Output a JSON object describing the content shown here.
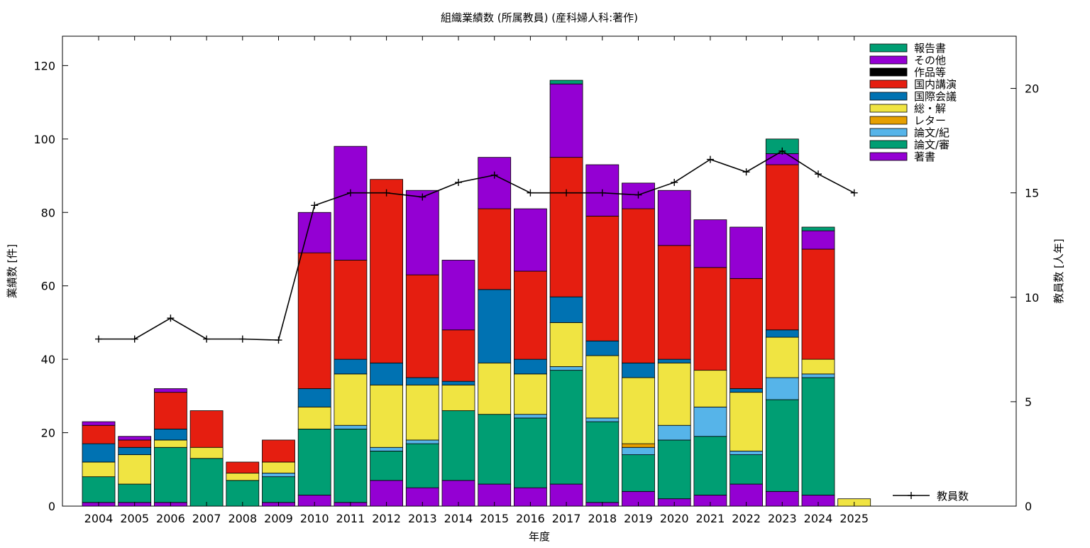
{
  "chart_data": {
    "type": "bar",
    "stacked": true,
    "title": "組織業績数 (所属教員) (産科婦人科:著作)",
    "xlabel": "年度",
    "ylabel": "業績数 [件]",
    "y2label": "教員数 [人年]",
    "ylim": [
      0,
      128
    ],
    "y2lim": [
      0,
      22.5
    ],
    "yticks": [
      0,
      20,
      40,
      60,
      80,
      100,
      120
    ],
    "y2ticks": [
      0,
      5,
      10,
      15,
      20
    ],
    "grid": false,
    "legend_position": "top-right",
    "categories": [
      "2004",
      "2005",
      "2006",
      "2007",
      "2008",
      "2009",
      "2010",
      "2011",
      "2012",
      "2013",
      "2014",
      "2015",
      "2016",
      "2017",
      "2018",
      "2019",
      "2020",
      "2021",
      "2022",
      "2023",
      "2024",
      "2025"
    ],
    "series": [
      {
        "name": "著書",
        "color": "#9400d3",
        "values": [
          1,
          1,
          1,
          0,
          0,
          1,
          3,
          1,
          7,
          5,
          7,
          6,
          5,
          6,
          1,
          4,
          2,
          3,
          6,
          4,
          3,
          0
        ]
      },
      {
        "name": "論文/審",
        "color": "#009e73",
        "values": [
          7,
          5,
          15,
          13,
          7,
          7,
          18,
          20,
          8,
          12,
          19,
          19,
          19,
          31,
          22,
          10,
          16,
          16,
          8,
          25,
          32,
          0
        ]
      },
      {
        "name": "論文/紀",
        "color": "#56b4e9",
        "values": [
          0,
          0,
          0,
          0,
          0,
          1,
          0,
          1,
          1,
          1,
          0,
          0,
          1,
          1,
          1,
          2,
          4,
          8,
          1,
          6,
          1,
          0
        ]
      },
      {
        "name": "レター",
        "color": "#e69f00",
        "values": [
          0,
          0,
          0,
          0,
          0,
          0,
          0,
          0,
          0,
          0,
          0,
          0,
          0,
          0,
          0,
          1,
          0,
          0,
          0,
          0,
          0,
          0
        ]
      },
      {
        "name": "総・解",
        "color": "#f0e442",
        "values": [
          4,
          8,
          2,
          3,
          2,
          3,
          6,
          14,
          17,
          15,
          7,
          14,
          11,
          12,
          17,
          18,
          17,
          10,
          16,
          11,
          4,
          2
        ]
      },
      {
        "name": "国際会議",
        "color": "#0072b2",
        "values": [
          5,
          2,
          3,
          0,
          0,
          0,
          5,
          4,
          6,
          2,
          1,
          20,
          4,
          7,
          4,
          4,
          1,
          0,
          1,
          2,
          0,
          0
        ]
      },
      {
        "name": "国内講演",
        "color": "#e51e10",
        "values": [
          5,
          2,
          10,
          10,
          3,
          6,
          37,
          27,
          50,
          28,
          14,
          22,
          24,
          38,
          34,
          42,
          31,
          28,
          30,
          45,
          30,
          0
        ]
      },
      {
        "name": "作品等",
        "color": "#000000",
        "values": [
          0,
          0,
          0,
          0,
          0,
          0,
          0,
          0,
          0,
          0,
          0,
          0,
          0,
          0,
          0,
          0,
          0,
          0,
          0,
          0,
          0,
          0
        ]
      },
      {
        "name": "その他",
        "color": "#9400d3",
        "values": [
          1,
          1,
          1,
          0,
          0,
          0,
          11,
          31,
          0,
          23,
          19,
          14,
          17,
          20,
          14,
          7,
          15,
          13,
          14,
          3,
          5,
          0
        ]
      },
      {
        "name": "報告書",
        "color": "#009e73",
        "values": [
          0,
          0,
          0,
          0,
          0,
          0,
          0,
          0,
          0,
          0,
          0,
          0,
          0,
          1,
          0,
          0,
          0,
          0,
          0,
          4,
          1,
          0
        ]
      }
    ],
    "line_series": {
      "name": "教員数",
      "axis": "y2",
      "color": "#000000",
      "values": [
        8.0,
        8.0,
        9.0,
        8.0,
        8.0,
        7.95,
        14.4,
        15.0,
        15.0,
        14.8,
        15.5,
        15.85,
        15.0,
        15.0,
        15.0,
        14.9,
        15.5,
        16.6,
        16.0,
        17.0,
        15.9,
        15.0
      ]
    }
  }
}
